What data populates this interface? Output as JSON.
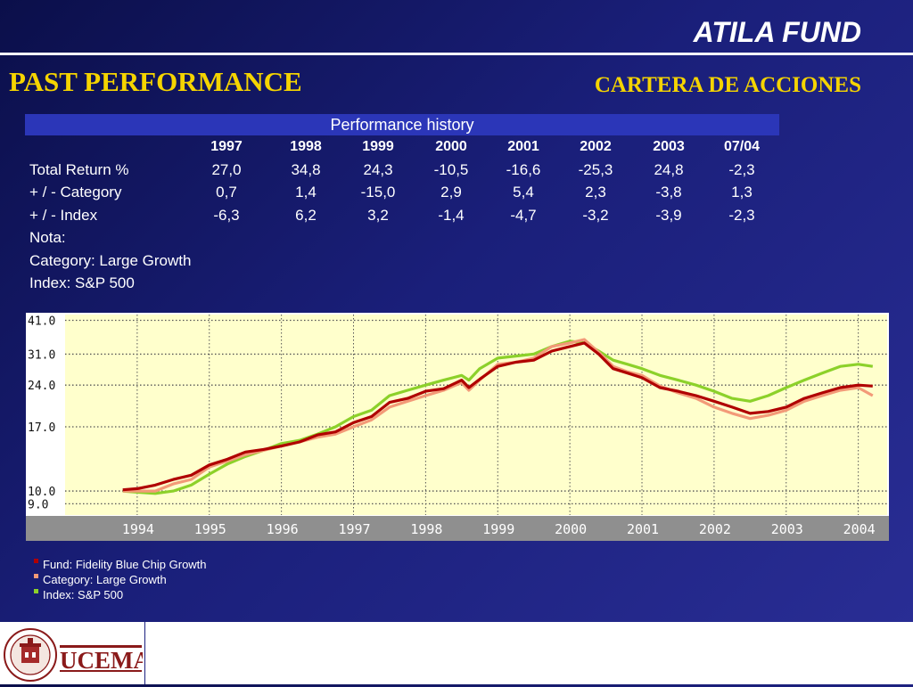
{
  "header": {
    "title": "ATILA FUND"
  },
  "section": {
    "title": "PAST PERFORMANCE",
    "subtitle": "CARTERA DE ACCIONES"
  },
  "table": {
    "caption": "Performance history",
    "years": [
      "1997",
      "1998",
      "1999",
      "2000",
      "2001",
      "2002",
      "2003",
      "07/04"
    ],
    "rows": [
      {
        "label": "Total Return %",
        "values": [
          "27,0",
          "34,8",
          "24,3",
          "-10,5",
          "-16,6",
          "-25,3",
          "24,8",
          "-2,3"
        ]
      },
      {
        "label": "+ / - Category",
        "values": [
          "0,7",
          "1,4",
          "-15,0",
          "2,9",
          "5,4",
          "2,3",
          "-3,8",
          "1,3"
        ]
      },
      {
        "label": "+ / - Index",
        "values": [
          "-6,3",
          "6,2",
          "3,2",
          "-1,4",
          "-4,7",
          "-3,2",
          "-3,9",
          "-2,3"
        ]
      }
    ],
    "notes": [
      "Nota:",
      "Category: Large Growth",
      "Index: S&P 500"
    ]
  },
  "chart_data": {
    "type": "line",
    "title": "",
    "xlabel": "",
    "ylabel": "",
    "x_ticks": [
      "1994",
      "1995",
      "1996",
      "1997",
      "1998",
      "1999",
      "2000",
      "2001",
      "2002",
      "2003",
      "2004"
    ],
    "y_ticks": [
      "41.0",
      "31.0",
      "24.0",
      "17.0",
      "10.0",
      "9.0"
    ],
    "y_scale": "log",
    "ylim": [
      8.2,
      43
    ],
    "xlim": [
      1993.0,
      2004.4
    ],
    "grid": true,
    "legend_position": "bottom-left",
    "colors": {
      "plot_bg": "#ffffcc",
      "axis_bg": "#ffffff",
      "xaxis_band": "#8f8f8f",
      "grid": "#555555"
    },
    "series": [
      {
        "name": "Fund: Fidelity Blue Chip Growth",
        "color": "#b00000",
        "x": [
          1993.8,
          1994.0,
          1994.25,
          1994.5,
          1994.75,
          1995.0,
          1995.25,
          1995.5,
          1995.75,
          1996.0,
          1996.25,
          1996.5,
          1996.75,
          1997.0,
          1997.25,
          1997.5,
          1997.75,
          1998.0,
          1998.25,
          1998.5,
          1998.6,
          1998.75,
          1999.0,
          1999.25,
          1999.5,
          1999.75,
          2000.0,
          2000.2,
          2000.4,
          2000.6,
          2000.8,
          2001.0,
          2001.25,
          2001.5,
          2001.75,
          2002.0,
          2002.25,
          2002.5,
          2002.75,
          2003.0,
          2003.25,
          2003.5,
          2003.75,
          2004.0,
          2004.2
        ],
        "y": [
          10.1,
          10.2,
          10.5,
          11.0,
          11.4,
          12.4,
          13.0,
          13.8,
          14.1,
          14.5,
          15.0,
          15.9,
          16.3,
          17.6,
          18.5,
          20.8,
          21.5,
          22.8,
          23.3,
          25.0,
          23.5,
          25.2,
          28.0,
          29.0,
          29.5,
          31.8,
          33.0,
          34.0,
          31.0,
          27.5,
          26.5,
          25.5,
          23.5,
          22.8,
          22.0,
          21.0,
          20.0,
          19.0,
          19.3,
          20.0,
          21.5,
          22.5,
          23.5,
          24.0,
          23.8
        ]
      },
      {
        "name": "Category: Large Growth",
        "color": "#f39a78",
        "x": [
          1993.8,
          1994.0,
          1994.25,
          1994.5,
          1994.75,
          1995.0,
          1995.25,
          1995.5,
          1995.75,
          1996.0,
          1996.25,
          1996.5,
          1996.75,
          1997.0,
          1997.25,
          1997.5,
          1997.75,
          1998.0,
          1998.25,
          1998.5,
          1998.6,
          1998.75,
          1999.0,
          1999.25,
          1999.5,
          1999.75,
          2000.0,
          2000.2,
          2000.4,
          2000.6,
          2000.8,
          2001.0,
          2001.25,
          2001.5,
          2001.75,
          2002.0,
          2002.25,
          2002.5,
          2002.75,
          2003.0,
          2003.25,
          2003.5,
          2003.75,
          2004.0,
          2004.2
        ],
        "y": [
          10.0,
          10.0,
          10.0,
          10.6,
          11.0,
          12.2,
          12.8,
          13.5,
          14.0,
          14.5,
          15.0,
          15.6,
          16.0,
          17.0,
          18.0,
          20.0,
          21.0,
          22.0,
          23.0,
          24.5,
          23.0,
          25.0,
          28.5,
          29.0,
          30.0,
          33.0,
          34.0,
          35.0,
          31.5,
          28.0,
          26.8,
          26.0,
          23.8,
          22.5,
          21.5,
          20.0,
          19.0,
          18.2,
          18.7,
          19.5,
          21.0,
          22.0,
          23.0,
          23.5,
          22.0
        ]
      },
      {
        "name": "Index: S&P 500",
        "color": "#8cd12a",
        "x": [
          1993.8,
          1994.0,
          1994.25,
          1994.5,
          1994.75,
          1995.0,
          1995.25,
          1995.5,
          1995.75,
          1996.0,
          1996.25,
          1996.5,
          1996.75,
          1997.0,
          1997.25,
          1997.5,
          1997.75,
          1998.0,
          1998.25,
          1998.5,
          1998.6,
          1998.75,
          1999.0,
          1999.25,
          1999.5,
          1999.75,
          2000.0,
          2000.2,
          2000.4,
          2000.6,
          2000.8,
          2001.0,
          2001.25,
          2001.5,
          2001.75,
          2002.0,
          2002.25,
          2002.5,
          2002.75,
          2003.0,
          2003.25,
          2003.5,
          2003.75,
          2004.0,
          2004.2
        ],
        "y": [
          10.0,
          9.9,
          9.8,
          10.0,
          10.5,
          11.5,
          12.5,
          13.3,
          14.0,
          14.8,
          15.2,
          16.0,
          17.0,
          18.5,
          19.5,
          22.0,
          23.0,
          24.0,
          25.0,
          26.0,
          25.0,
          27.5,
          30.0,
          30.5,
          31.0,
          33.0,
          34.5,
          34.0,
          31.8,
          29.5,
          28.5,
          27.5,
          26.0,
          25.0,
          24.0,
          22.8,
          21.5,
          21.0,
          22.0,
          23.5,
          25.0,
          26.5,
          28.0,
          28.5,
          28.0
        ]
      }
    ]
  },
  "footer": {
    "logo_text": "UCEMA",
    "seal_text": "UNIVERSIDAD DEL CEMA"
  }
}
